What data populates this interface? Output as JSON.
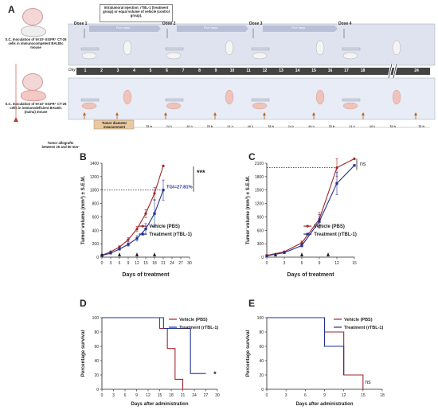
{
  "panel_letters": [
    "A",
    "B",
    "C",
    "D",
    "E"
  ],
  "scheme": {
    "injection_note": "Intratumoral injection: rTBL-1 (treatment group) or equal volume of vehicle (control group).",
    "group1_text": "S.C. Inoculation of 5×10⁵ EGFR⁺ CT-26 cells in immunocompetent BALB/c mouse",
    "group2_text": "S.C. Inoculation of 5×10⁵ EGFR⁺ CT-26 cells in immunodeficient BALB/c (nu/nu) mouse",
    "allograft_text": "Tumor allografts between 25 and 50 mm³",
    "tumor_measure": "Tumor diameter measurement",
    "day_label": "Day",
    "doses": [
      "Dose 1",
      "Dose 2",
      "Dose 3",
      "Dose 4"
    ],
    "five_days": "Five days",
    "days": [
      "1",
      "2",
      "3",
      "4",
      "5",
      "6",
      "7",
      "8",
      "9",
      "10",
      "11",
      "12",
      "13",
      "14",
      "15",
      "16",
      "17",
      "18",
      "24"
    ],
    "intervals": [
      "72 h",
      "24 h",
      "48 h",
      "72 h",
      "24 h",
      "48 h",
      "72 h",
      "24 h",
      "48 h",
      "72 h",
      "24 h",
      "48 h",
      "72 h",
      "72 h"
    ],
    "colors": {
      "top_band": "#dfe3ef",
      "bottom_band": "#e8ecf6",
      "timeline": "#444444",
      "arrow_up": "#b5651d",
      "measure_box": "#e9c9a0"
    }
  },
  "chart_data": [
    {
      "panel": "B",
      "type": "line",
      "ylabel": "Tumor volume (mm³) ± S.E.M.",
      "xlabel": "Days of treatment",
      "xlim": [
        0,
        30
      ],
      "ylim": [
        0,
        1400
      ],
      "xticks": [
        0,
        3,
        6,
        9,
        12,
        15,
        18,
        21,
        24,
        27,
        30
      ],
      "yticks": [
        0,
        200,
        400,
        600,
        800,
        1000,
        1200,
        1400
      ],
      "series": [
        {
          "name": "Vehicle (PBS)",
          "color": "#a0262d",
          "x": [
            0,
            3,
            6,
            9,
            12,
            15,
            18,
            21
          ],
          "y": [
            30,
            80,
            150,
            260,
            420,
            650,
            950,
            1360
          ],
          "err": [
            5,
            10,
            20,
            30,
            40,
            60,
            90,
            0
          ]
        },
        {
          "name": "Treatment (rTBL-1)",
          "color": "#22318f",
          "x": [
            0,
            3,
            6,
            9,
            12,
            15,
            18,
            21
          ],
          "y": [
            25,
            60,
            120,
            190,
            280,
            420,
            650,
            1000
          ],
          "err": [
            5,
            8,
            15,
            25,
            40,
            80,
            200,
            150
          ]
        }
      ],
      "annotation_tgi": "TGI=27.81%",
      "significance": "***"
    },
    {
      "panel": "C",
      "type": "line",
      "ylabel": "Tumor volume (mm³) ± S.E.M.",
      "xlabel": "Days of treatment",
      "xlim": [
        0,
        15
      ],
      "ylim": [
        0,
        2100
      ],
      "xticks": [
        0,
        3,
        6,
        9,
        12,
        15
      ],
      "yticks": [
        0,
        300,
        600,
        900,
        1200,
        1500,
        1800,
        2100
      ],
      "series": [
        {
          "name": "Vehicle (PBS)",
          "color": "#a0262d",
          "x": [
            0,
            3,
            6,
            9,
            12,
            15
          ],
          "y": [
            40,
            120,
            320,
            850,
            2000,
            2200
          ],
          "err": [
            5,
            15,
            40,
            150,
            200,
            0
          ]
        },
        {
          "name": "Treatment (rTBL-1)",
          "color": "#22318f",
          "x": [
            0,
            3,
            6,
            9,
            12,
            15
          ],
          "y": [
            30,
            100,
            260,
            800,
            1650,
            2050
          ],
          "err": [
            5,
            15,
            30,
            150,
            250,
            0
          ]
        }
      ],
      "significance": "ns"
    },
    {
      "panel": "D",
      "type": "line",
      "ylabel": "Percentage survival",
      "xlabel": "Days after administration",
      "xlim": [
        0,
        30
      ],
      "ylim": [
        0,
        100
      ],
      "xticks": [
        0,
        3,
        6,
        9,
        12,
        15,
        18,
        21,
        24,
        27,
        30
      ],
      "yticks": [
        0,
        20,
        40,
        60,
        80,
        100
      ],
      "series": [
        {
          "name": "Vehicle (PBS)",
          "color": "#a0262d",
          "x": [
            0,
            15,
            17,
            19,
            21,
            23
          ],
          "y": [
            100,
            85,
            57,
            14,
            0,
            0
          ]
        },
        {
          "name": "Treatment (rTBL-1)",
          "color": "#22318f",
          "x": [
            0,
            16,
            19,
            23,
            27
          ],
          "y": [
            100,
            85,
            85,
            22,
            22
          ]
        }
      ],
      "significance": "*"
    },
    {
      "panel": "E",
      "type": "line",
      "ylabel": "Percentage survival",
      "xlabel": "Days after administration",
      "xlim": [
        0,
        18
      ],
      "ylim": [
        0,
        100
      ],
      "xticks": [
        0,
        3,
        6,
        9,
        12,
        15,
        18
      ],
      "yticks": [
        0,
        20,
        40,
        60,
        80,
        100
      ],
      "series": [
        {
          "name": "Vehicle (PBS)",
          "color": "#a0262d",
          "x": [
            0,
            9,
            12,
            15
          ],
          "y": [
            100,
            80,
            20,
            0
          ]
        },
        {
          "name": "Treatment (rTBL-1)",
          "color": "#22318f",
          "x": [
            0,
            9,
            12
          ],
          "y": [
            100,
            60,
            20
          ]
        }
      ],
      "significance": "ns"
    }
  ]
}
